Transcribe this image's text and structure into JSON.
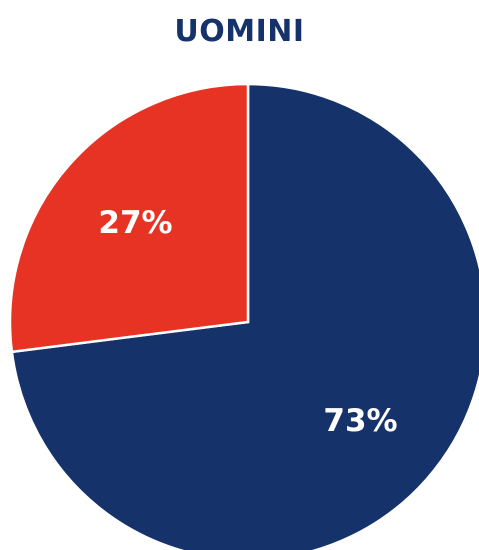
{
  "chart_data": {
    "type": "pie",
    "title": "UOMINI",
    "slices": [
      {
        "label": "73%",
        "value": 73,
        "color": "#16326a"
      },
      {
        "label": "27%",
        "value": 27,
        "color": "#e63323"
      }
    ]
  }
}
